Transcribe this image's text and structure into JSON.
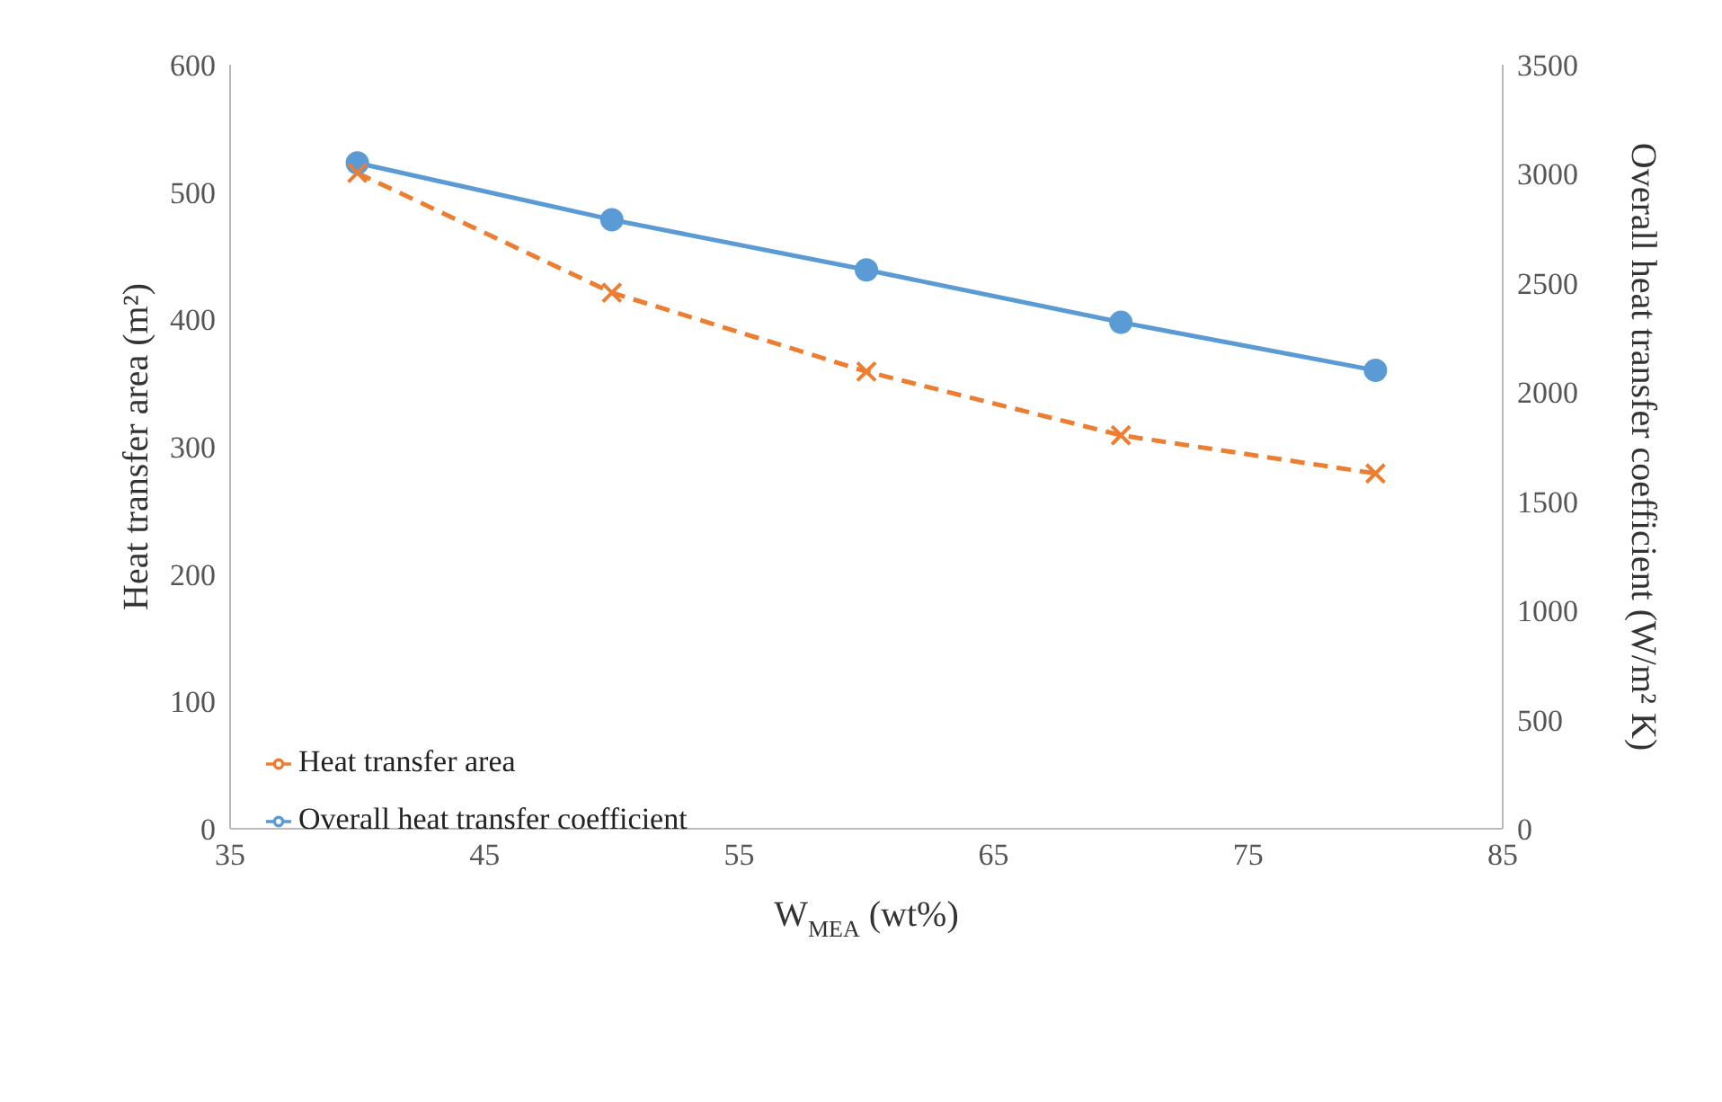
{
  "chart_data": {
    "type": "line",
    "xlabel": "W$_{MEA}$ (wt%)",
    "ylabel": "Heat transfer area (m²)",
    "y2label": "Overall heat transfer coefficient (W/m² K)",
    "x": [
      40,
      50,
      60,
      70,
      80
    ],
    "series": [
      {
        "name": "Heat transfer area",
        "color": "#ed7d31",
        "values": [
          515,
          421,
          359,
          309,
          279
        ],
        "marker": "cross",
        "line_style": "dashed"
      },
      {
        "name": "Overall heat transfer coefficient",
        "color": "#5b9bd5",
        "values": [
          3050,
          2790,
          2560,
          2320,
          2100
        ],
        "marker": "circle",
        "line_style": "solid",
        "axis": "y2"
      }
    ],
    "xlim": [
      35,
      85
    ],
    "xticks": [
      35,
      45,
      55,
      65,
      75,
      85
    ],
    "ylim": [
      0,
      600
    ],
    "yticks": [
      0,
      100,
      200,
      300,
      400,
      500,
      600
    ],
    "y2lim": [
      0,
      3500
    ],
    "y2ticks": [
      0,
      500,
      1000,
      1500,
      2000,
      2500,
      3000,
      3500
    ],
    "grid": false,
    "legend": "bottom left"
  }
}
